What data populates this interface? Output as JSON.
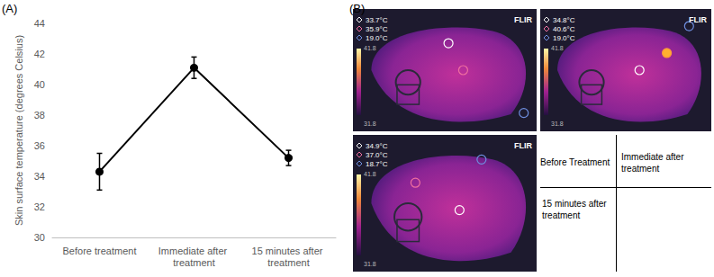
{
  "panel_labels": {
    "A": "(A)",
    "B": "(B)"
  },
  "chart_data": {
    "type": "line",
    "y_label": "Skin surface temperature (degrees Celsius)",
    "categories": [
      "Before treatment",
      "Immediate after treatment",
      "15 minutes after treatment"
    ],
    "values": [
      34.3,
      41.1,
      35.2
    ],
    "error": [
      1.2,
      0.7,
      0.5
    ],
    "color": "#000000",
    "marker": "circle",
    "ylim": [
      30,
      44
    ],
    "yticks": [
      30,
      32,
      34,
      36,
      38,
      40,
      42,
      44
    ],
    "grid": false
  },
  "thermal_images": [
    {
      "logo": "FLIR",
      "readings": [
        "33.7°C",
        "35.9°C",
        "19.0°C"
      ],
      "scale_max": "41.8",
      "scale_min": "31.8"
    },
    {
      "logo": "FLIR",
      "readings": [
        "34.8°C",
        "40.6°C",
        "19.0°C"
      ],
      "scale_max": "41.8",
      "scale_min": "31.8"
    },
    {
      "logo": "FLIR",
      "readings": [
        "34.9°C",
        "37.0°C",
        "18.7°C"
      ],
      "scale_max": "41.8",
      "scale_min": "31.8"
    }
  ],
  "key": {
    "top_left": "Before Treatment",
    "top_right": "Immediate after treatment",
    "bottom_left": "15 minutes after treatment"
  }
}
